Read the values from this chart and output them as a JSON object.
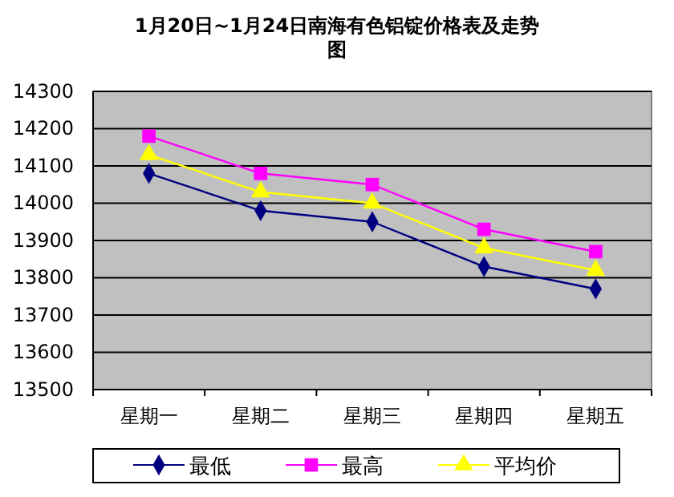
{
  "chart_data": {
    "type": "line",
    "title": "1月20日~1月24日南海有色铝锭价格表及走势图",
    "categories": [
      "星期一",
      "星期二",
      "星期三",
      "星期四",
      "星期五"
    ],
    "series": [
      {
        "name": "最低",
        "color": "#000080",
        "marker": "diamond",
        "values": [
          14080,
          13980,
          13950,
          13830,
          13770
        ]
      },
      {
        "name": "最高",
        "color": "#ff00ff",
        "marker": "square",
        "values": [
          14180,
          14080,
          14050,
          13930,
          13870
        ]
      },
      {
        "name": "平均价",
        "color": "#ffff00",
        "marker": "triangle",
        "values": [
          14130,
          14030,
          14000,
          13880,
          13820
        ]
      }
    ],
    "ylim": [
      13500,
      14300
    ],
    "yticks": [
      13500,
      13600,
      13700,
      13800,
      13900,
      14000,
      14100,
      14200,
      14300
    ],
    "grid": "y",
    "legend": "bottom"
  }
}
